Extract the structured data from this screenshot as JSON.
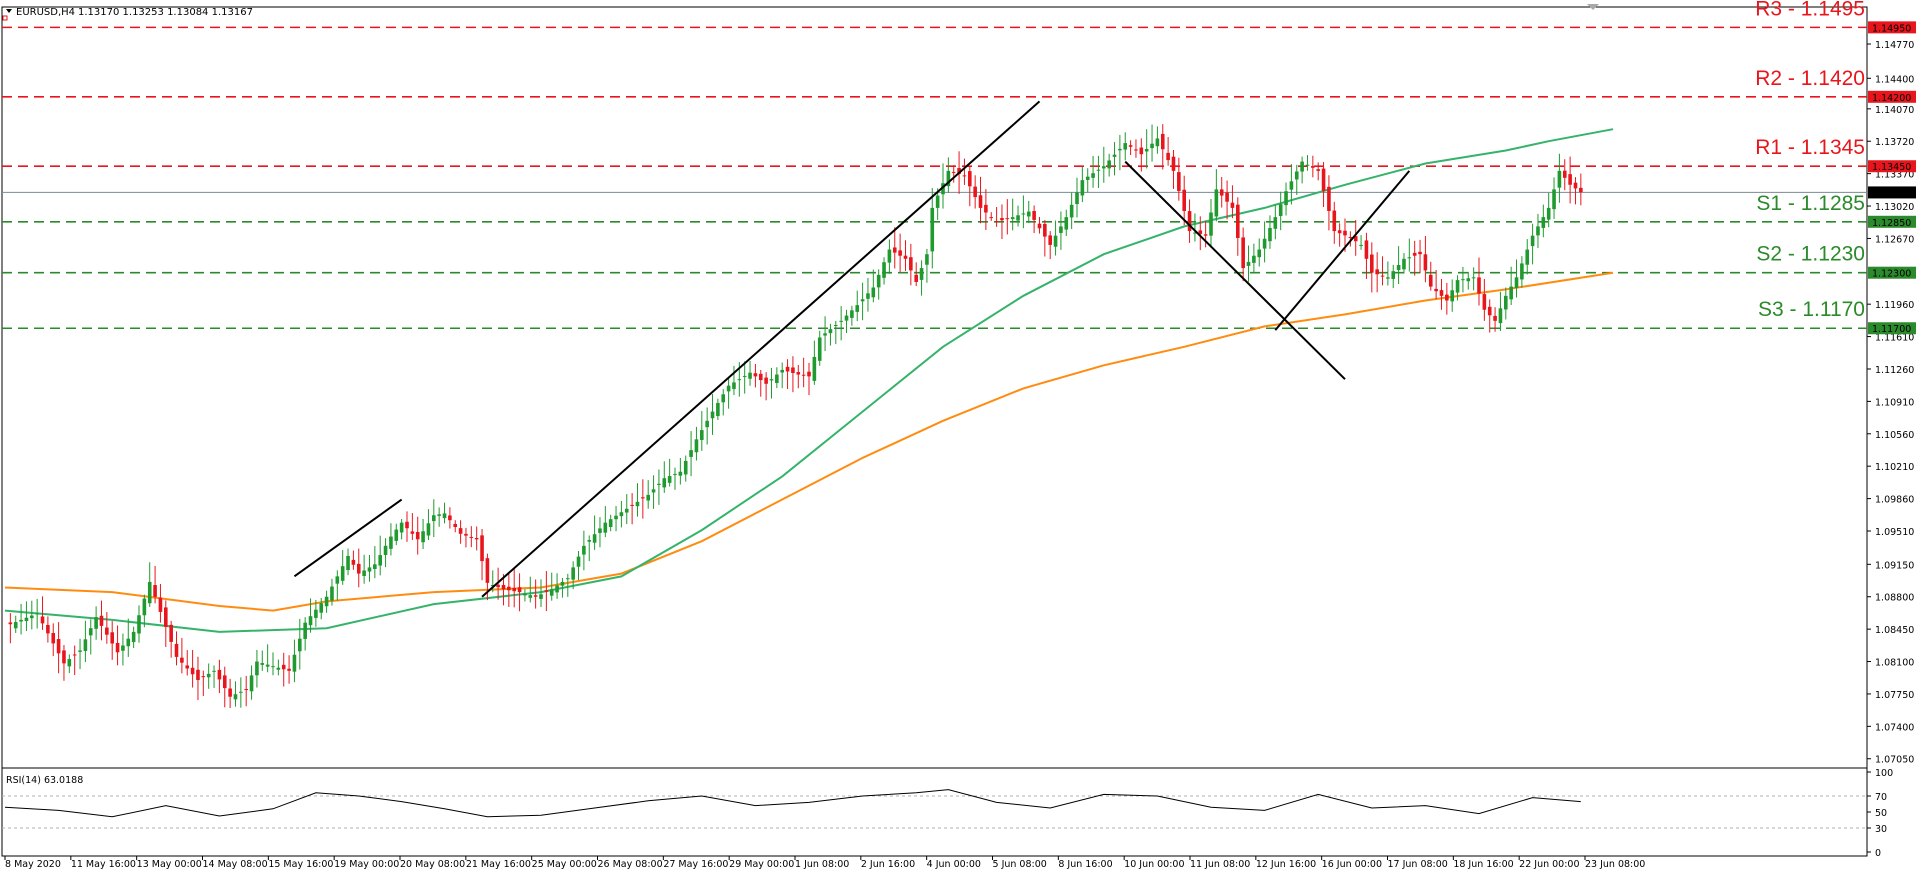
{
  "header": {
    "symbol": "EURUSD,H4",
    "ohlc": "1.13170 1.13253 1.13084 1.13167"
  },
  "rsi_header": "RSI(14) 63.0188",
  "current_price_tag": "1.13167",
  "colors": {
    "bull": "#1e9a2e",
    "bear": "#e8161c",
    "ma_fast": "#35b36a",
    "ma_slow": "#ff8c10",
    "resistance": "#e8161c",
    "support": "#2b8a2b",
    "trendline": "#000000",
    "price_line": "#7a8a96"
  },
  "chart_data": {
    "type": "candlestick",
    "title": "EURUSD,H4",
    "ylim": [
      1.0695,
      1.1517
    ],
    "y_ticks": [
      "1.14770",
      "1.14400",
      "1.14070",
      "1.13720",
      "1.13370",
      "1.13020",
      "1.12670",
      "1.11960",
      "1.11610",
      "1.11260",
      "1.10910",
      "1.10560",
      "1.10210",
      "1.09860",
      "1.09510",
      "1.09150",
      "1.08800",
      "1.08450",
      "1.08100",
      "1.07750",
      "1.07400",
      "1.07050"
    ],
    "x_labels": [
      "8 May 2020",
      "11 May 16:00",
      "13 May 00:00",
      "14 May 08:00",
      "15 May 16:00",
      "19 May 00:00",
      "20 May 08:00",
      "21 May 16:00",
      "25 May 00:00",
      "26 May 08:00",
      "27 May 16:00",
      "29 May 00:00",
      "1 Jun 08:00",
      "2 Jun 16:00",
      "4 Jun 00:00",
      "5 Jun 08:00",
      "8 Jun 16:00",
      "10 Jun 00:00",
      "11 Jun 08:00",
      "12 Jun 16:00",
      "16 Jun 00:00",
      "17 Jun 08:00",
      "18 Jun 16:00",
      "22 Jun 00:00",
      "23 Jun 08:00"
    ],
    "levels": [
      {
        "label": "R3 - 1.1495",
        "value": 1.1495,
        "tag": "1.14950",
        "kind": "resistance"
      },
      {
        "label": "R2 - 1.1420",
        "value": 1.142,
        "tag": "1.14200",
        "kind": "resistance"
      },
      {
        "label": "R1 - 1.1345",
        "value": 1.1345,
        "tag": "1.13450",
        "kind": "resistance"
      },
      {
        "label": "S1 - 1.1285",
        "value": 1.1285,
        "tag": "1.12850",
        "kind": "support"
      },
      {
        "label": "S2 - 1.1230",
        "value": 1.123,
        "tag": "1.12300",
        "kind": "support"
      },
      {
        "label": "S3 - 1.1170",
        "value": 1.117,
        "tag": "1.11700",
        "kind": "support"
      }
    ],
    "current_price": 1.13167,
    "close_path": [
      [
        0,
        1.0848
      ],
      [
        6,
        1.0862
      ],
      [
        11,
        1.0808
      ],
      [
        14,
        1.0822
      ],
      [
        17,
        1.0858
      ],
      [
        21,
        1.082
      ],
      [
        24,
        1.0842
      ],
      [
        27,
        1.0896
      ],
      [
        32,
        1.0815
      ],
      [
        36,
        1.079
      ],
      [
        39,
        1.08
      ],
      [
        42,
        1.0772
      ],
      [
        45,
        1.078
      ],
      [
        47,
        1.081
      ],
      [
        50,
        1.0805
      ],
      [
        53,
        1.08
      ],
      [
        56,
        1.0852
      ],
      [
        60,
        1.088
      ],
      [
        64,
        1.0924
      ],
      [
        66,
        1.0905
      ],
      [
        69,
        1.0915
      ],
      [
        72,
        1.0945
      ],
      [
        74,
        1.096
      ],
      [
        77,
        1.0942
      ],
      [
        80,
        1.0968
      ],
      [
        82,
        1.097
      ],
      [
        85,
        1.0948
      ],
      [
        88,
        1.0942
      ],
      [
        90,
        1.0895
      ],
      [
        93,
        1.0888
      ],
      [
        96,
        1.0885
      ],
      [
        99,
        1.088
      ],
      [
        102,
        1.0888
      ],
      [
        105,
        1.09
      ],
      [
        108,
        1.0935
      ],
      [
        112,
        1.096
      ],
      [
        116,
        1.0975
      ],
      [
        120,
        1.099
      ],
      [
        123,
        1.1008
      ],
      [
        126,
        1.1015
      ],
      [
        129,
        1.105
      ],
      [
        132,
        1.108
      ],
      [
        135,
        1.1108
      ],
      [
        139,
        1.1122
      ],
      [
        142,
        1.111
      ],
      [
        145,
        1.1125
      ],
      [
        148,
        1.112
      ],
      [
        150,
        1.1118
      ],
      [
        152,
        1.116
      ],
      [
        156,
        1.1178
      ],
      [
        159,
        1.1195
      ],
      [
        162,
        1.1214
      ],
      [
        165,
        1.1255
      ],
      [
        168,
        1.1245
      ],
      [
        170,
        1.122
      ],
      [
        172,
        1.125
      ],
      [
        173,
        1.13
      ],
      [
        176,
        1.134
      ],
      [
        179,
        1.1335
      ],
      [
        182,
        1.13
      ],
      [
        185,
        1.1285
      ],
      [
        188,
        1.129
      ],
      [
        191,
        1.1296
      ],
      [
        195,
        1.126
      ],
      [
        198,
        1.129
      ],
      [
        201,
        1.133
      ],
      [
        205,
        1.1345
      ],
      [
        209,
        1.137
      ],
      [
        212,
        1.1358
      ],
      [
        215,
        1.1375
      ],
      [
        218,
        1.134
      ],
      [
        221,
        1.1275
      ],
      [
        224,
        1.127
      ],
      [
        226,
        1.132
      ],
      [
        229,
        1.13
      ],
      [
        231,
        1.1235
      ],
      [
        234,
        1.1255
      ],
      [
        237,
        1.129
      ],
      [
        239,
        1.1318
      ],
      [
        242,
        1.135
      ],
      [
        245,
        1.134
      ],
      [
        248,
        1.1275
      ],
      [
        251,
        1.1268
      ],
      [
        253,
        1.126
      ],
      [
        255,
        1.123
      ],
      [
        258,
        1.1225
      ],
      [
        261,
        1.1245
      ],
      [
        264,
        1.125
      ],
      [
        266,
        1.1215
      ],
      [
        269,
        1.12
      ],
      [
        271,
        1.1222
      ],
      [
        274,
        1.1225
      ],
      [
        276,
        1.119
      ],
      [
        278,
        1.1178
      ],
      [
        280,
        1.1205
      ],
      [
        282,
        1.1225
      ],
      [
        285,
        1.127
      ],
      [
        288,
        1.13
      ],
      [
        290,
        1.134
      ],
      [
        292,
        1.1325
      ],
      [
        294,
        1.1317
      ]
    ],
    "ma_fast": [
      [
        0,
        1.0865
      ],
      [
        20,
        1.0855
      ],
      [
        40,
        1.0842
      ],
      [
        60,
        1.0846
      ],
      [
        80,
        1.0872
      ],
      [
        100,
        1.0885
      ],
      [
        115,
        1.0902
      ],
      [
        130,
        1.0952
      ],
      [
        145,
        1.101
      ],
      [
        160,
        1.108
      ],
      [
        175,
        1.115
      ],
      [
        190,
        1.1205
      ],
      [
        205,
        1.125
      ],
      [
        220,
        1.128
      ],
      [
        235,
        1.13
      ],
      [
        250,
        1.1325
      ],
      [
        265,
        1.1348
      ],
      [
        280,
        1.1362
      ],
      [
        288,
        1.1372
      ],
      [
        300,
        1.1385
      ]
    ],
    "ma_slow": [
      [
        0,
        1.089
      ],
      [
        20,
        1.0885
      ],
      [
        40,
        1.087
      ],
      [
        50,
        1.0865
      ],
      [
        60,
        1.0875
      ],
      [
        80,
        1.0885
      ],
      [
        100,
        1.089
      ],
      [
        115,
        1.0905
      ],
      [
        130,
        1.094
      ],
      [
        145,
        1.0985
      ],
      [
        160,
        1.103
      ],
      [
        175,
        1.107
      ],
      [
        190,
        1.1105
      ],
      [
        205,
        1.113
      ],
      [
        220,
        1.115
      ],
      [
        235,
        1.1172
      ],
      [
        250,
        1.1185
      ],
      [
        265,
        1.12
      ],
      [
        280,
        1.1212
      ],
      [
        300,
        1.123
      ]
    ],
    "trendlines": [
      {
        "from": [
          54,
          1.0902
        ],
        "to": [
          74,
          1.0985
        ]
      },
      {
        "from": [
          89,
          1.088
        ],
        "to": [
          193,
          1.1415
        ]
      },
      {
        "from": [
          209,
          1.135
        ],
        "to": [
          250,
          1.1115
        ]
      },
      {
        "from": [
          237,
          1.1168
        ],
        "to": [
          262,
          1.134
        ]
      }
    ],
    "rsi": {
      "period": 14,
      "last": 63.0188,
      "levels": [
        100,
        70,
        50,
        30,
        0
      ],
      "values": [
        [
          0,
          56
        ],
        [
          10,
          52
        ],
        [
          20,
          44
        ],
        [
          30,
          58
        ],
        [
          40,
          45
        ],
        [
          50,
          54
        ],
        [
          58,
          74
        ],
        [
          66,
          70
        ],
        [
          74,
          63
        ],
        [
          82,
          54
        ],
        [
          90,
          44
        ],
        [
          100,
          46
        ],
        [
          110,
          55
        ],
        [
          120,
          64
        ],
        [
          130,
          70
        ],
        [
          140,
          58
        ],
        [
          150,
          62
        ],
        [
          160,
          70
        ],
        [
          170,
          74
        ],
        [
          176,
          78
        ],
        [
          185,
          62
        ],
        [
          195,
          55
        ],
        [
          205,
          72
        ],
        [
          215,
          70
        ],
        [
          225,
          56
        ],
        [
          235,
          52
        ],
        [
          245,
          72
        ],
        [
          255,
          55
        ],
        [
          265,
          58
        ],
        [
          275,
          48
        ],
        [
          285,
          68
        ],
        [
          294,
          63
        ]
      ]
    }
  }
}
